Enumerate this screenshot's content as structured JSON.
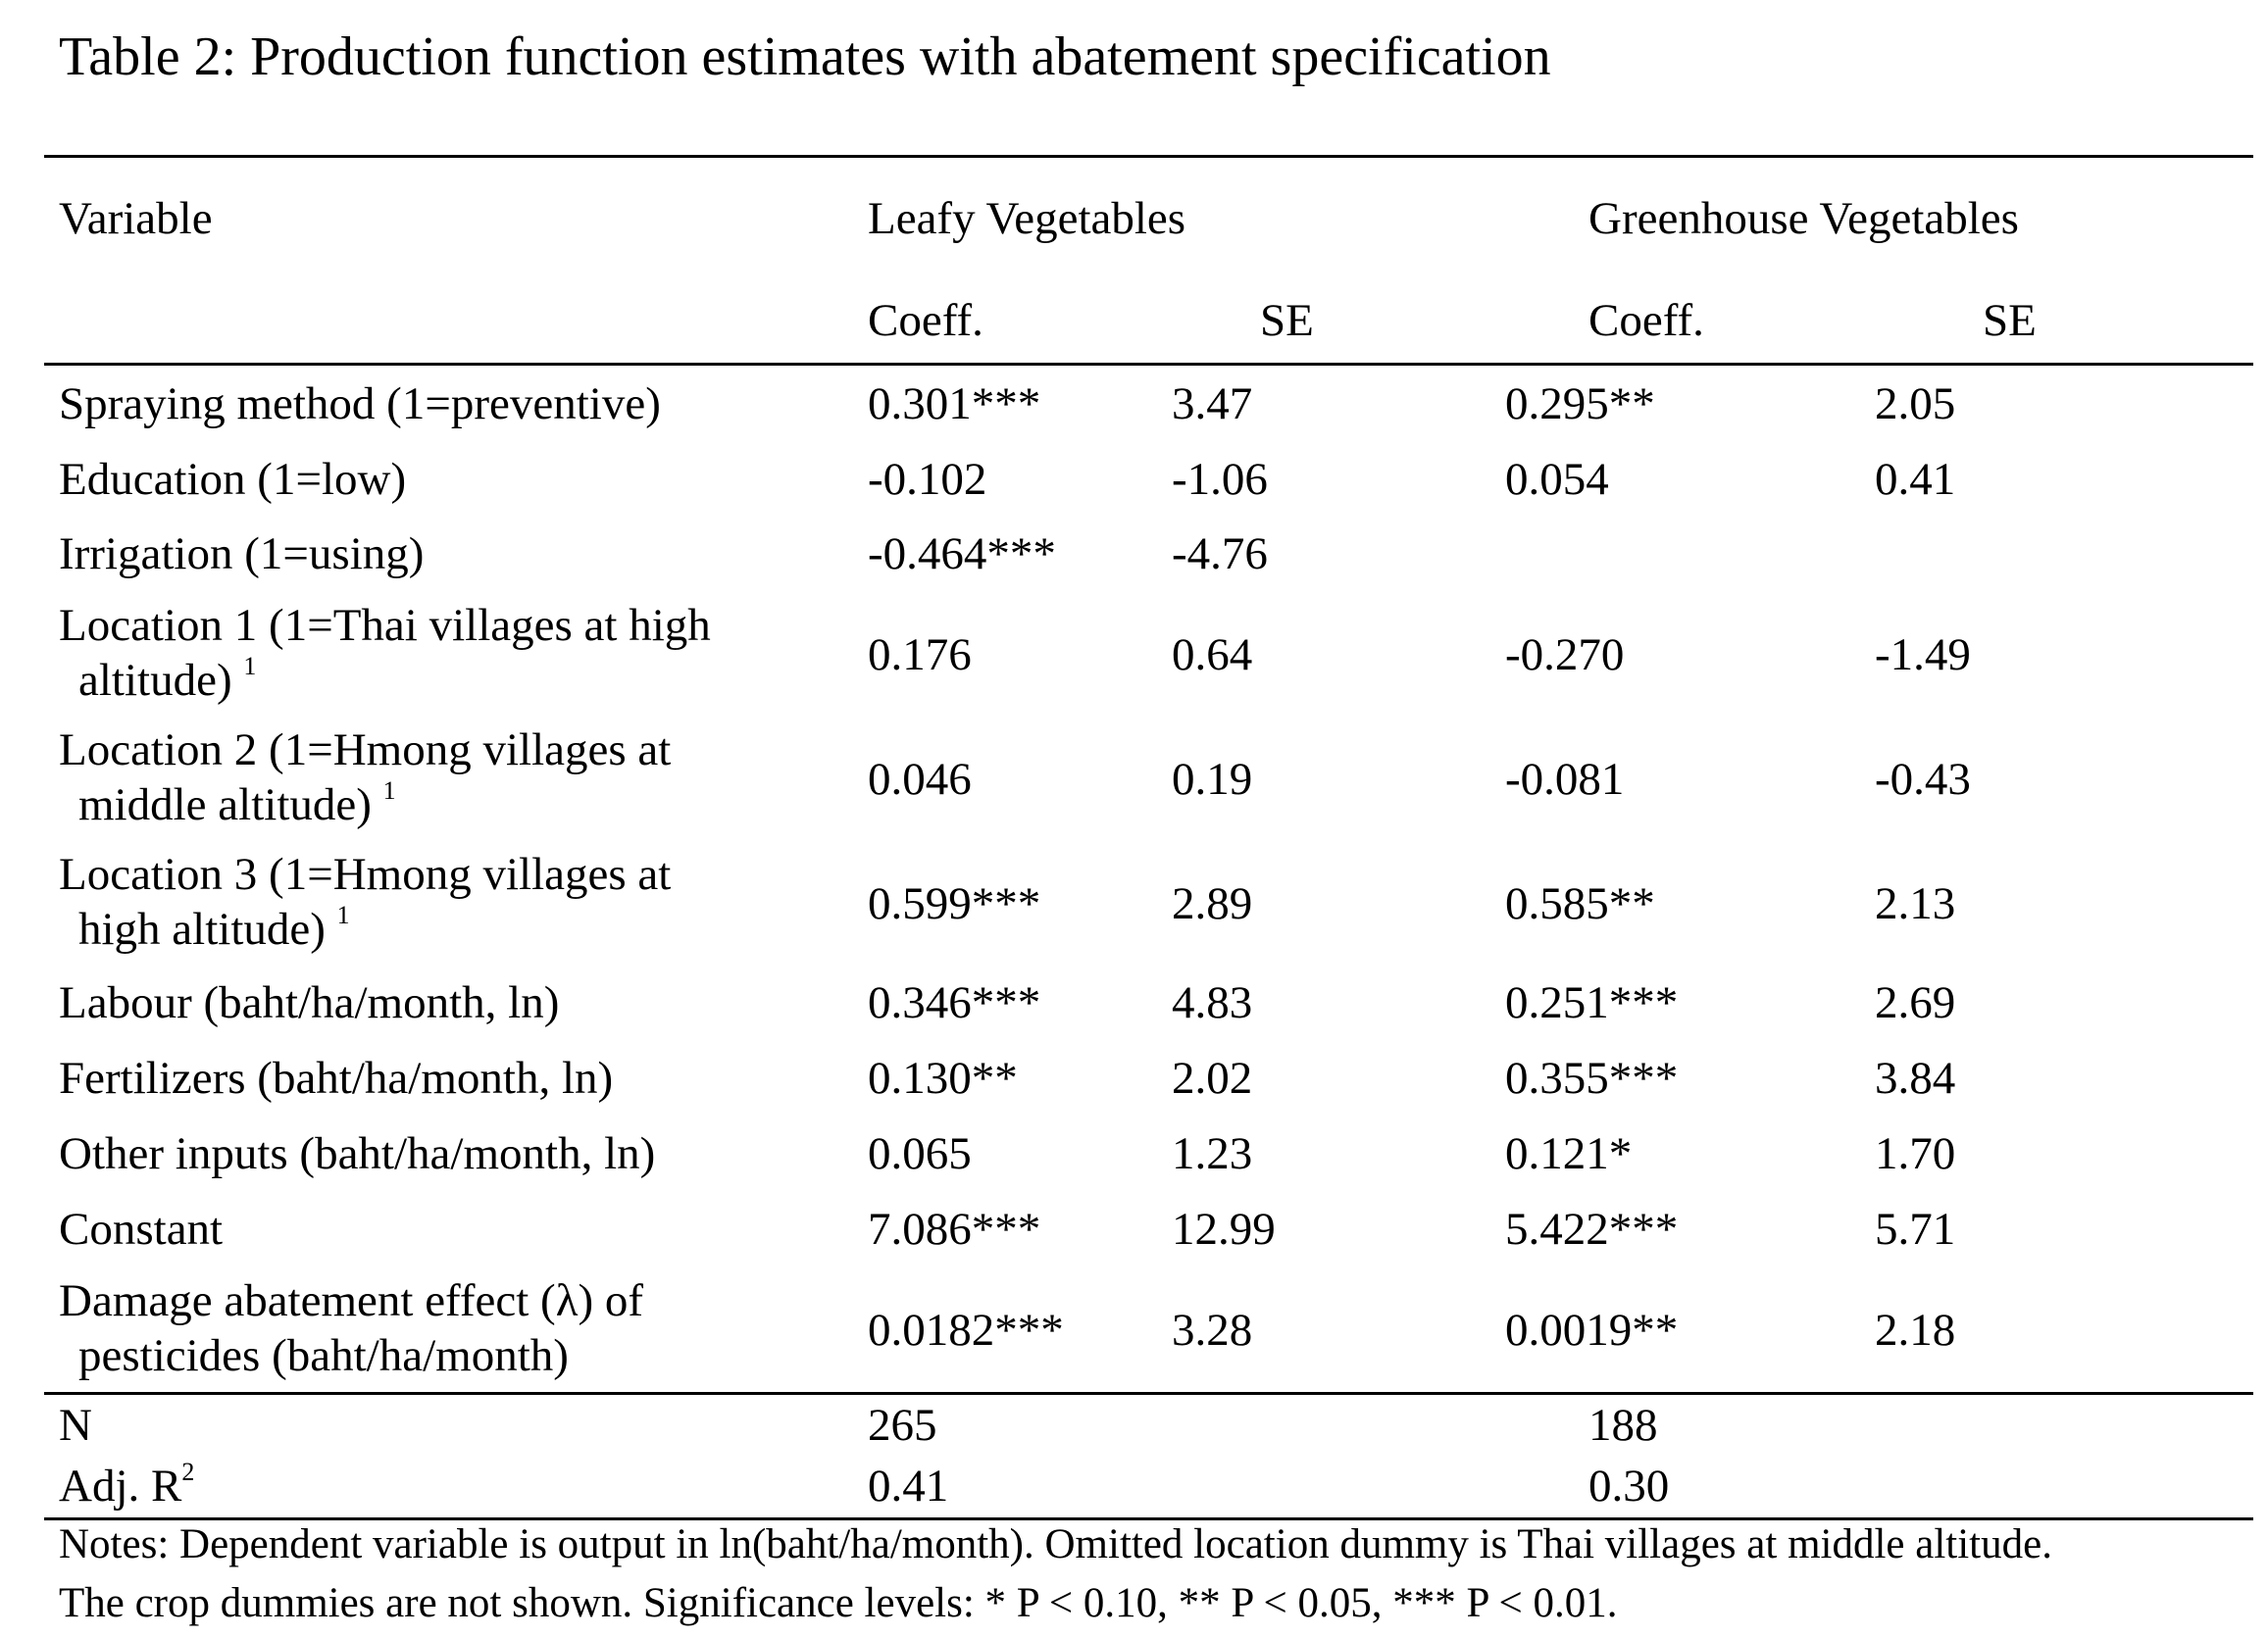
{
  "title": "Table 2:  Production function estimates with abatement specification",
  "header": {
    "variable": "Variable",
    "group_leafy": "Leafy Vegetables",
    "group_greenhouse": "Greenhouse Vegetables",
    "coeff": "Coeff.",
    "se": "SE"
  },
  "rows": [
    {
      "label_1": "Spraying method (1=preventive)",
      "label_2": "",
      "fn": "",
      "leafy_coeff": "0.301***",
      "leafy_se": "3.47",
      "gh_coeff": "0.295**",
      "gh_se": "2.05"
    },
    {
      "label_1": "Education (1=low)",
      "label_2": "",
      "fn": "",
      "leafy_coeff": "-0.102",
      "leafy_se": "-1.06",
      "gh_coeff": "0.054",
      "gh_se": "0.41"
    },
    {
      "label_1": "Irrigation (1=using)",
      "label_2": "",
      "fn": "",
      "leafy_coeff": "-0.464***",
      "leafy_se": "-4.76",
      "gh_coeff": "",
      "gh_se": ""
    },
    {
      "label_1": "Location 1 (1=Thai villages at high",
      "label_2": "altitude)",
      "fn": "1",
      "leafy_coeff": "0.176",
      "leafy_se": "0.64",
      "gh_coeff": "-0.270",
      "gh_se": "-1.49"
    },
    {
      "label_1": "Location 2 (1=Hmong villages at",
      "label_2": "middle altitude)",
      "fn": "1",
      "leafy_coeff": "0.046",
      "leafy_se": "0.19",
      "gh_coeff": "-0.081",
      "gh_se": "-0.43"
    },
    {
      "label_1": "Location 3 (1=Hmong villages at",
      "label_2": "high altitude)",
      "fn": "1",
      "leafy_coeff": "0.599***",
      "leafy_se": "2.89",
      "gh_coeff": "0.585**",
      "gh_se": "2.13"
    },
    {
      "label_1": "Labour (baht/ha/month, ln)",
      "label_2": "",
      "fn": "",
      "leafy_coeff": "0.346***",
      "leafy_se": "4.83",
      "gh_coeff": "0.251***",
      "gh_se": "2.69"
    },
    {
      "label_1": "Fertilizers (baht/ha/month, ln)",
      "label_2": "",
      "fn": "",
      "leafy_coeff": "0.130**",
      "leafy_se": "2.02",
      "gh_coeff": "0.355***",
      "gh_se": "3.84"
    },
    {
      "label_1": "Other inputs (baht/ha/month, ln)",
      "label_2": "",
      "fn": "",
      "leafy_coeff": "0.065",
      "leafy_se": "1.23",
      "gh_coeff": "0.121*",
      "gh_se": "1.70"
    },
    {
      "label_1": "Constant",
      "label_2": "",
      "fn": "",
      "leafy_coeff": "7.086***",
      "leafy_se": "12.99",
      "gh_coeff": "5.422***",
      "gh_se": "5.71"
    },
    {
      "label_1": "Damage abatement effect (λ) of",
      "label_2": "pesticides (baht/ha/month)",
      "fn": "",
      "leafy_coeff": "0.0182***",
      "leafy_se": "3.28",
      "gh_coeff": "0.0019**",
      "gh_se": "2.18"
    }
  ],
  "stats": {
    "n_label": "N",
    "n_leafy": "265",
    "n_greenhouse": "188",
    "r2_label": "Adj. R",
    "r2_sup": "2",
    "r2_leafy": "0.41",
    "r2_greenhouse": "0.30"
  },
  "notes": {
    "line_1": "Notes: Dependent variable is output in ln(baht/ha/month). Omitted location dummy is Thai villages at middle altitude.",
    "line_2": "The crop dummies are not shown. Significance levels: * P < 0.10, ** P < 0.05, *** P < 0.01."
  }
}
